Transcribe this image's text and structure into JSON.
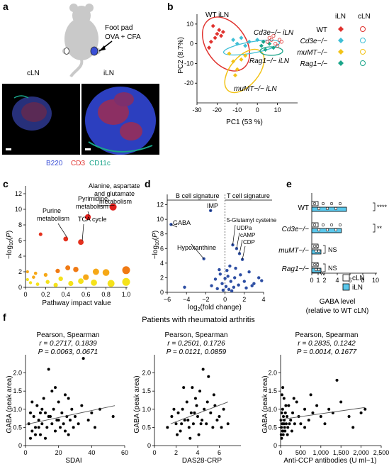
{
  "panel_labels": {
    "a": "a",
    "b": "b",
    "c": "c",
    "d": "d",
    "e": "e",
    "f": "f"
  },
  "panel_a": {
    "injection_label_line1": "Foot pad",
    "injection_label_line2": "OVA + CFA",
    "cln_label": "cLN",
    "iln_label": "iLN",
    "stain_b220": "B220",
    "stain_cd3": "CD3",
    "stain_cd11c": "CD11c",
    "colors": {
      "b220": "#3a4fd6",
      "cd3": "#e0322e",
      "cd11c": "#1aa58a",
      "mouse": "#c9c9c9"
    }
  },
  "chart_data": [
    {
      "panel": "b",
      "type": "scatter",
      "xlabel": "PC1 (53 %)",
      "ylabel": "PC2 (8.7%)",
      "xlim": [
        -30,
        20
      ],
      "ylim": [
        -30,
        15
      ],
      "xticks": [
        -30,
        -20,
        -10,
        0,
        10
      ],
      "yticks": [
        -20,
        -10,
        0,
        10
      ],
      "legend_header": [
        "iLN",
        "cLN"
      ],
      "legend": [
        "WT",
        "Cd3e−/−",
        "muMT−/−",
        "Rag1−/−"
      ],
      "cluster_labels": [
        "WT iLN",
        "Cd3e−/− iLN",
        "Rag1−/− iLN",
        "muMT−/− iLN"
      ],
      "series": [
        {
          "name": "WT",
          "color": "#e0322e",
          "points": [
            [
              -22,
              9
            ],
            [
              -20,
              5
            ],
            [
              -18,
              4
            ],
            [
              -21,
              3
            ],
            [
              -19,
              7
            ],
            [
              -17,
              6
            ],
            [
              -23,
              1
            ],
            [
              -24,
              -2
            ]
          ]
        },
        {
          "name": "Cd3e−/−",
          "color": "#3fbfd6",
          "points": [
            [
              -12,
              2
            ],
            [
              -8,
              3
            ],
            [
              -4,
              1
            ],
            [
              0,
              2
            ],
            [
              -6,
              -1
            ],
            [
              -10,
              0
            ]
          ]
        },
        {
          "name": "muMT−/−",
          "color": "#f2c318",
          "points": [
            [
              -14,
              -5
            ],
            [
              -12,
              -9
            ],
            [
              -10,
              -13
            ],
            [
              -8,
              -8
            ],
            [
              -11,
              -16
            ],
            [
              -6,
              -6
            ]
          ]
        },
        {
          "name": "Rag1−/−",
          "color": "#1aa58a",
          "points": [
            [
              2,
              -1
            ],
            [
              4,
              -3
            ],
            [
              6,
              0
            ],
            [
              8,
              -2
            ],
            [
              3,
              1
            ]
          ]
        },
        {
          "name": "cLN",
          "color": "#e0322e",
          "points": [
            [
              5,
              1
            ],
            [
              7,
              2
            ],
            [
              9,
              0
            ],
            [
              11,
              2
            ],
            [
              10,
              -1
            ],
            [
              12,
              1
            ],
            [
              6,
              3
            ],
            [
              8,
              4
            ]
          ]
        }
      ]
    },
    {
      "panel": "c",
      "type": "scatter",
      "xlabel": "Pathway impact value",
      "ylabel": "−log10(P)",
      "xlim": [
        0,
        1
      ],
      "ylim": [
        0,
        13
      ],
      "xticks": [
        0,
        0.2,
        0.4,
        0.6,
        0.8,
        1.0
      ],
      "yticks": [
        0,
        2,
        4,
        6,
        8,
        10,
        12
      ],
      "annotations": [
        "Alanine, aspartate and glutamate metabolism",
        "Pyrimidine metabolism",
        "Purine metabolism",
        "TCA cycle"
      ],
      "points": [
        [
          0.87,
          10.3
        ],
        [
          0.62,
          9.0
        ],
        [
          0.4,
          6.2
        ],
        [
          0.55,
          5.8
        ],
        [
          0.15,
          6.8
        ],
        [
          0.02,
          2.0
        ],
        [
          0.1,
          1.8
        ],
        [
          0.2,
          1.6
        ],
        [
          0.32,
          2.1
        ],
        [
          0.42,
          2.5
        ],
        [
          0.5,
          2.3
        ],
        [
          0.6,
          1.3
        ],
        [
          0.8,
          1.9
        ],
        [
          1.0,
          2.2
        ],
        [
          0.05,
          0.6
        ],
        [
          0.12,
          0.4
        ],
        [
          0.22,
          0.7
        ],
        [
          0.3,
          0.3
        ],
        [
          0.45,
          0.5
        ],
        [
          0.55,
          0.8
        ],
        [
          0.68,
          0.6
        ],
        [
          0.85,
          0.5
        ],
        [
          1.0,
          0.7
        ],
        [
          0.02,
          1.0
        ],
        [
          0.08,
          1.3
        ],
        [
          0.35,
          1.1
        ],
        [
          0.7,
          2.0
        ]
      ]
    },
    {
      "panel": "d",
      "type": "scatter",
      "xlabel": "log2(fold change)",
      "ylabel": "−log10(P)",
      "xlim": [
        -6,
        4
      ],
      "ylim": [
        0,
        14
      ],
      "xticks": [
        -6,
        -4,
        -2,
        0,
        2,
        4
      ],
      "yticks": [
        0,
        2,
        4,
        6,
        8,
        10,
        12
      ],
      "signature_labels": [
        "B cell signature",
        "T cell signature"
      ],
      "annotations": [
        "IMP",
        "GABA",
        "Hypoxanthine",
        "5-Glutamyl cysteine",
        "UDPa",
        "cAMP",
        "CDP"
      ],
      "points": [
        [
          -5.6,
          9.3
        ],
        [
          -1.5,
          11.2
        ],
        [
          -2.2,
          4.6
        ],
        [
          0.5,
          3.6
        ],
        [
          0.8,
          6.5
        ],
        [
          1.2,
          6.0
        ],
        [
          1.5,
          5.3
        ],
        [
          1.8,
          4.5
        ],
        [
          0.3,
          2.2
        ],
        [
          -0.5,
          2.5
        ],
        [
          -1.0,
          1.8
        ],
        [
          -0.3,
          1.2
        ],
        [
          0.1,
          0.8
        ],
        [
          0.6,
          1.5
        ],
        [
          1.0,
          2.0
        ],
        [
          1.4,
          1.0
        ],
        [
          2.0,
          1.5
        ],
        [
          2.5,
          2.8
        ],
        [
          3.0,
          1.2
        ],
        [
          3.5,
          2.0
        ],
        [
          -0.8,
          0.5
        ],
        [
          -0.2,
          0.3
        ],
        [
          0.4,
          0.4
        ],
        [
          0.9,
          0.7
        ],
        [
          1.6,
          2.4
        ],
        [
          2.2,
          0.6
        ],
        [
          -1.4,
          0.9
        ],
        [
          0.2,
          3.0
        ],
        [
          1.1,
          3.3
        ],
        [
          0.7,
          0.2
        ],
        [
          -0.6,
          3.1
        ],
        [
          2.8,
          0.9
        ],
        [
          3.8,
          1.6
        ],
        [
          -4.2,
          0.7
        ],
        [
          0.0,
          1.9
        ]
      ]
    },
    {
      "panel": "e",
      "type": "bar",
      "categories": [
        "WT",
        "Cd3e−/−",
        "muMT−/−",
        "Rag1−/−"
      ],
      "xlabel_line1": "GABA level",
      "xlabel_line2": "(relative to WT cLN)",
      "xticks": [
        "0",
        "1",
        "2",
        "4",
        "6",
        "8",
        "10"
      ],
      "series": [
        {
          "name": "cLN",
          "color": "#ffffff",
          "values": [
            1.0,
            1.0,
            1.0,
            1.0
          ]
        },
        {
          "name": "iLN",
          "color": "#5bc8ec",
          "values": [
            5.0,
            4.2,
            1.0,
            1.0
          ]
        }
      ],
      "significance": [
        "****",
        "**",
        "NS",
        "NS"
      ]
    },
    {
      "panel": "f1",
      "type": "scatter",
      "title": "Patients with rheumatoid arthritis",
      "stats_header": "Pearson, Spearman",
      "r_text": "r = 0.2717, 0.1839",
      "p_text": "P = 0.0063, 0.0671",
      "xlabel": "SDAI",
      "ylabel": "GABA (peak area)",
      "xlim": [
        0,
        60
      ],
      "ylim": [
        0,
        2.5
      ],
      "xticks": [
        0,
        20,
        40,
        60
      ],
      "yticks": [
        0,
        0.5,
        1.0,
        1.5,
        2.0
      ],
      "trend": [
        [
          0,
          0.58
        ],
        [
          54,
          1.1
        ]
      ]
    },
    {
      "panel": "f2",
      "type": "scatter",
      "stats_header": "Pearson, Spearman",
      "r_text": "r = 0.2501, 0.1726",
      "p_text": "P = 0.0121, 0.0859",
      "xlabel": "DAS28-CRP",
      "ylabel": "GABA (peak area)",
      "xlim": [
        0,
        8
      ],
      "ylim": [
        0,
        2.5
      ],
      "xticks": [
        0,
        2,
        4,
        6
      ],
      "yticks": [
        0,
        0.5,
        1.0,
        1.5,
        2.0
      ],
      "trend": [
        [
          1.5,
          0.6
        ],
        [
          6.8,
          1.2
        ]
      ]
    },
    {
      "panel": "f3",
      "type": "scatter",
      "stats_header": "Pearson, Spearman",
      "r_text": "r = 0.2835, 0.1242",
      "p_text": "P = 0.0014, 0.1677",
      "xlabel": "Anti-CCP antibodies (U ml−1)",
      "ylabel": "GABA (peak area)",
      "xlim": [
        0,
        2500
      ],
      "ylim": [
        0,
        2.5
      ],
      "xticks": [
        "0",
        "500",
        "1,000",
        "1,500",
        "2,000",
        "2,500"
      ],
      "yticks": [
        0,
        0.5,
        1.0,
        1.5,
        2.0
      ],
      "trend": [
        [
          0,
          0.72
        ],
        [
          2100,
          1.05
        ]
      ]
    }
  ],
  "scatter_points_f": {
    "f1": [
      [
        2,
        0.6
      ],
      [
        3,
        0.9
      ],
      [
        4,
        0.4
      ],
      [
        5,
        0.8
      ],
      [
        6,
        0.5
      ],
      [
        7,
        1.1
      ],
      [
        8,
        0.7
      ],
      [
        9,
        0.3
      ],
      [
        10,
        0.6
      ],
      [
        11,
        1.3
      ],
      [
        12,
        0.9
      ],
      [
        13,
        0.5
      ],
      [
        14,
        2.1
      ],
      [
        15,
        0.8
      ],
      [
        16,
        0.6
      ],
      [
        17,
        1.0
      ],
      [
        18,
        0.4
      ],
      [
        19,
        0.7
      ],
      [
        20,
        1.2
      ],
      [
        21,
        0.5
      ],
      [
        22,
        0.9
      ],
      [
        23,
        0.6
      ],
      [
        24,
        1.4
      ],
      [
        25,
        0.8
      ],
      [
        26,
        0.3
      ],
      [
        27,
        0.7
      ],
      [
        28,
        1.0
      ],
      [
        29,
        0.5
      ],
      [
        30,
        0.8
      ],
      [
        32,
        0.6
      ],
      [
        34,
        1.1
      ],
      [
        35,
        2.4
      ],
      [
        38,
        0.7
      ],
      [
        40,
        0.9
      ],
      [
        42,
        0.5
      ],
      [
        45,
        1.0
      ],
      [
        53,
        0.8
      ],
      [
        3,
        0.2
      ],
      [
        6,
        0.3
      ],
      [
        9,
        0.9
      ],
      [
        12,
        0.2
      ],
      [
        18,
        1.6
      ],
      [
        24,
        0.4
      ],
      [
        16,
        1.5
      ],
      [
        10,
        1.0
      ],
      [
        20,
        0.7
      ],
      [
        14,
        0.8
      ],
      [
        26,
        1.3
      ],
      [
        8,
        0.5
      ],
      [
        4,
        1.2
      ]
    ],
    "f2": [
      [
        1.2,
        0.5
      ],
      [
        1.6,
        0.8
      ],
      [
        2.0,
        0.6
      ],
      [
        2.2,
        0.9
      ],
      [
        2.4,
        0.4
      ],
      [
        2.6,
        1.0
      ],
      [
        2.8,
        0.7
      ],
      [
        3.0,
        1.2
      ],
      [
        3.2,
        0.5
      ],
      [
        3.4,
        0.9
      ],
      [
        3.6,
        0.6
      ],
      [
        3.8,
        1.3
      ],
      [
        4.0,
        0.8
      ],
      [
        4.2,
        1.5
      ],
      [
        4.4,
        0.7
      ],
      [
        4.6,
        1.0
      ],
      [
        4.8,
        0.6
      ],
      [
        5.0,
        1.9
      ],
      [
        5.2,
        0.9
      ],
      [
        5.4,
        0.5
      ],
      [
        5.6,
        1.1
      ],
      [
        5.8,
        0.7
      ],
      [
        6.0,
        0.8
      ],
      [
        6.4,
        1.0
      ],
      [
        6.8,
        0.6
      ],
      [
        2.1,
        0.3
      ],
      [
        3.3,
        0.2
      ],
      [
        4.1,
        0.3
      ],
      [
        2.7,
        1.6
      ],
      [
        3.9,
        1.1
      ],
      [
        4.5,
        2.1
      ],
      [
        3.1,
        0.7
      ],
      [
        2.5,
        0.6
      ],
      [
        3.7,
        0.9
      ],
      [
        4.3,
        0.6
      ],
      [
        1.8,
        1.0
      ],
      [
        5.5,
        1.4
      ],
      [
        6.2,
        0.5
      ],
      [
        3.5,
        1.6
      ],
      [
        4.9,
        1.2
      ]
    ],
    "f3": [
      [
        10,
        0.7
      ],
      [
        20,
        0.5
      ],
      [
        30,
        0.9
      ],
      [
        40,
        0.6
      ],
      [
        50,
        1.0
      ],
      [
        60,
        0.4
      ],
      [
        70,
        0.8
      ],
      [
        80,
        0.6
      ],
      [
        90,
        0.7
      ],
      [
        100,
        0.5
      ],
      [
        120,
        0.9
      ],
      [
        140,
        0.6
      ],
      [
        160,
        0.8
      ],
      [
        180,
        0.5
      ],
      [
        200,
        1.1
      ],
      [
        250,
        0.7
      ],
      [
        300,
        0.9
      ],
      [
        350,
        0.6
      ],
      [
        400,
        1.2
      ],
      [
        450,
        0.8
      ],
      [
        500,
        0.6
      ],
      [
        600,
        1.0
      ],
      [
        700,
        0.7
      ],
      [
        800,
        0.9
      ],
      [
        900,
        1.1
      ],
      [
        1000,
        0.8
      ],
      [
        1100,
        0.6
      ],
      [
        1200,
        1.0
      ],
      [
        1300,
        0.9
      ],
      [
        1500,
        1.2
      ],
      [
        1700,
        0.8
      ],
      [
        2000,
        0.9
      ],
      [
        2100,
        1.0
      ],
      [
        1400,
        1.8
      ],
      [
        1800,
        0.5
      ],
      [
        15,
        0.3
      ],
      [
        25,
        0.2
      ],
      [
        35,
        1.4
      ],
      [
        45,
        0.4
      ],
      [
        55,
        1.6
      ],
      [
        65,
        0.3
      ],
      [
        85,
        1.3
      ],
      [
        110,
        0.4
      ],
      [
        130,
        1.1
      ],
      [
        170,
        0.3
      ],
      [
        220,
        0.6
      ],
      [
        280,
        0.4
      ],
      [
        330,
        1.3
      ],
      [
        600,
        0.5
      ],
      [
        750,
        1.4
      ]
    ]
  }
}
